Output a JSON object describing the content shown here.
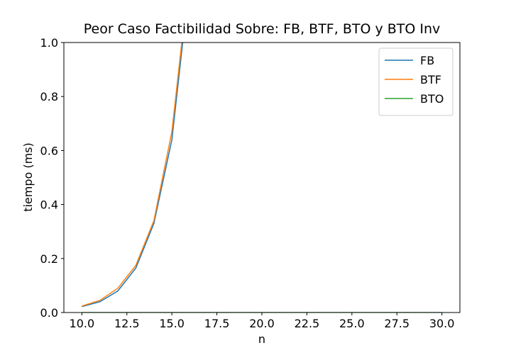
{
  "chart_data": {
    "type": "line",
    "title": "Peor Caso Factibilidad Sobre: FB, BTF, BTO y BTO Inv",
    "x_label": "n",
    "y_label": "tiempo (ms)",
    "x": [
      10,
      11,
      12,
      13,
      14,
      15,
      16,
      17,
      18,
      19,
      20,
      21,
      22,
      23,
      24,
      25,
      26,
      27,
      28,
      29,
      30
    ],
    "series": [
      {
        "name": "FB",
        "color": "#1f77b4",
        "values": [
          0.022,
          0.04,
          0.08,
          0.165,
          0.33,
          0.64,
          1.24,
          null,
          null,
          null,
          null,
          null,
          null,
          null,
          null,
          null,
          null,
          null,
          null,
          null,
          null
        ]
      },
      {
        "name": "BTF",
        "color": "#ff7f0e",
        "values": [
          0.024,
          0.045,
          0.09,
          0.175,
          0.34,
          0.67,
          1.27,
          null,
          null,
          null,
          null,
          null,
          null,
          null,
          null,
          null,
          null,
          null,
          null,
          null,
          null
        ]
      },
      {
        "name": "BTO",
        "color": "#2ca02c",
        "values": [
          0,
          0,
          0,
          0,
          0,
          0,
          0,
          0,
          0,
          0,
          0,
          0,
          0,
          0,
          0,
          0,
          0,
          0,
          0,
          0,
          0
        ]
      }
    ],
    "xlim": [
      9,
      31
    ],
    "xticks": [
      {
        "value": 10,
        "label": "10.0"
      },
      {
        "value": 12.5,
        "label": "12.5"
      },
      {
        "value": 15,
        "label": "15.0"
      },
      {
        "value": 17.5,
        "label": "17.5"
      },
      {
        "value": 20,
        "label": "20.0"
      },
      {
        "value": 22.5,
        "label": "22.5"
      },
      {
        "value": 25,
        "label": "25.0"
      },
      {
        "value": 27.5,
        "label": "27.5"
      },
      {
        "value": 30,
        "label": "30.0"
      }
    ],
    "ylim": [
      0,
      1
    ],
    "yticks": [
      {
        "value": 0,
        "label": "0.0"
      },
      0.2,
      0.4,
      0.6,
      0.8,
      {
        "value": 1,
        "label": "1.0"
      }
    ],
    "grid": false,
    "legend": "upper right"
  }
}
